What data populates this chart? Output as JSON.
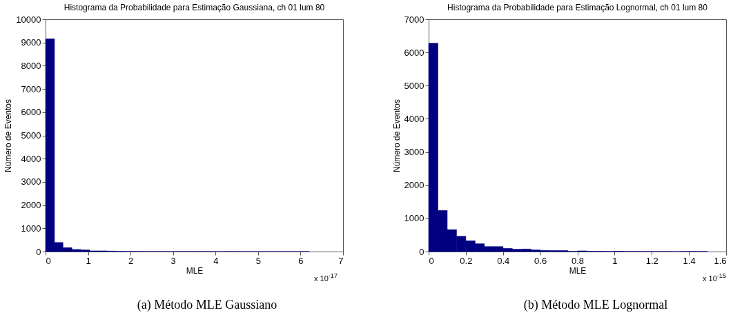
{
  "chart_data": [
    {
      "type": "histogram",
      "title": "Histograma da Probabilidade para Estimação Gaussiana, ch 01 lum 80",
      "xlabel": "MLE",
      "ylabel": "Número de Eventos",
      "color": "#000080",
      "bins": [
        0,
        0.21,
        0.41,
        0.62,
        0.83,
        1.04,
        1.24,
        1.45,
        1.66,
        1.86,
        2.07,
        2.28,
        2.48,
        2.69,
        2.9,
        3.1,
        3.31,
        3.52,
        3.73,
        3.93,
        4.14,
        4.35,
        4.55,
        4.76,
        4.97,
        5.17,
        5.38,
        5.59,
        5.8,
        6.0,
        6.21
      ],
      "values": [
        9160,
        390,
        170,
        90,
        70,
        30,
        30,
        20,
        10,
        5,
        5,
        3,
        3,
        3,
        2,
        2,
        2,
        2,
        3,
        0,
        3,
        3,
        0,
        0,
        0,
        0,
        0,
        0,
        0,
        2
      ],
      "xlim": [
        0,
        7
      ],
      "xticks": [
        0,
        1,
        2,
        3,
        4,
        5,
        6,
        7
      ],
      "ylim": [
        0,
        10000
      ],
      "yticks": [
        0,
        1000,
        2000,
        3000,
        4000,
        5000,
        6000,
        7000,
        8000,
        9000,
        10000
      ],
      "grid": false,
      "annotations": [
        "x 10$^{-17}$",
        "(a) Método MLE Gaussiano"
      ]
    },
    {
      "type": "histogram",
      "title": "Histograma da Probabilidade para Estimação Lognormal, ch 01 lum 80",
      "xlabel": "MLE",
      "ylabel": "Número de Eventos",
      "color": "#000080",
      "bins": [
        0,
        0.05,
        0.1,
        0.15,
        0.2,
        0.25,
        0.3,
        0.35,
        0.4,
        0.45,
        0.5,
        0.55,
        0.6,
        0.65,
        0.7,
        0.75,
        0.8,
        0.85,
        0.9,
        0.95,
        1.0,
        1.05,
        1.1,
        1.15,
        1.2,
        1.25,
        1.3,
        1.35,
        1.4,
        1.45,
        1.5
      ],
      "values": [
        6280,
        1240,
        660,
        460,
        325,
        235,
        150,
        150,
        95,
        70,
        75,
        50,
        35,
        30,
        30,
        8,
        20,
        10,
        8,
        5,
        10,
        3,
        3,
        2,
        2,
        2,
        0,
        3,
        3,
        2
      ],
      "xlim": [
        0,
        1.6
      ],
      "xticks": [
        0,
        0.2,
        0.4,
        0.6,
        0.8,
        1,
        1.2,
        1.4,
        1.6
      ],
      "ylim": [
        0,
        7000
      ],
      "yticks": [
        0,
        1000,
        2000,
        3000,
        4000,
        5000,
        6000,
        7000
      ],
      "grid": false,
      "annotations": [
        "x 10$^{-15}$",
        "(b) Método MLE Lognormal"
      ]
    }
  ]
}
